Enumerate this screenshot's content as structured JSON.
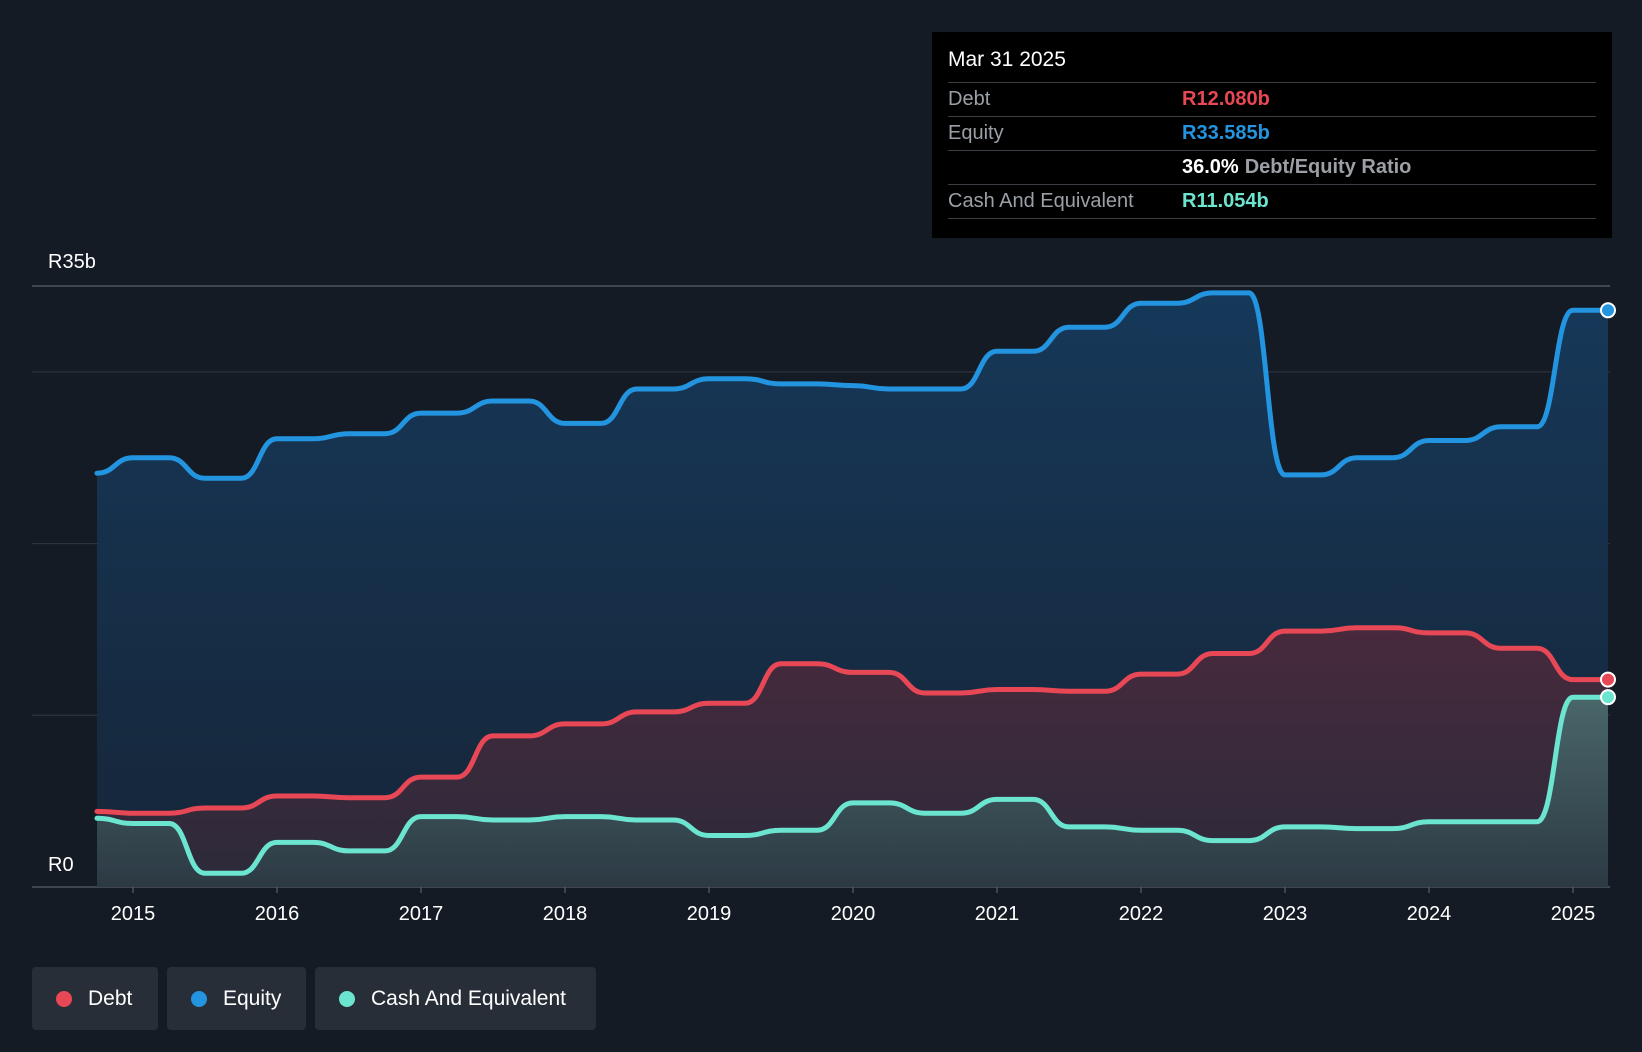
{
  "chart_data": {
    "type": "area",
    "title": "",
    "ylabel_top": "R35b",
    "ylabel_bottom": "R0",
    "ylim": [
      0,
      35
    ],
    "unit": "R billion",
    "x_ticks": [
      "2015",
      "2016",
      "2017",
      "2018",
      "2019",
      "2020",
      "2021",
      "2022",
      "2023",
      "2024",
      "2025"
    ],
    "x": [
      2014.75,
      2015.0,
      2015.25,
      2015.5,
      2015.75,
      2016.0,
      2016.25,
      2016.5,
      2016.75,
      2017.0,
      2017.25,
      2017.5,
      2017.75,
      2018.0,
      2018.25,
      2018.5,
      2018.75,
      2019.0,
      2019.25,
      2019.5,
      2019.75,
      2020.0,
      2020.25,
      2020.5,
      2020.75,
      2021.0,
      2021.25,
      2021.5,
      2021.75,
      2022.0,
      2022.25,
      2022.5,
      2022.75,
      2023.0,
      2023.25,
      2023.5,
      2023.75,
      2024.0,
      2024.25,
      2024.5,
      2024.75,
      2025.0,
      2025.25
    ],
    "series": [
      {
        "name": "Equity",
        "color": "#2394df",
        "values": [
          24.1,
          25.0,
          25.0,
          23.8,
          23.8,
          26.1,
          26.1,
          26.4,
          26.4,
          27.6,
          27.6,
          28.3,
          28.3,
          27.0,
          27.0,
          29.0,
          29.0,
          29.6,
          29.6,
          29.3,
          29.3,
          29.2,
          29.0,
          29.0,
          29.0,
          31.2,
          31.2,
          32.6,
          32.6,
          34.0,
          34.0,
          34.6,
          34.6,
          24.0,
          24.0,
          25.0,
          25.0,
          26.0,
          26.0,
          26.8,
          26.8,
          33.585,
          33.585
        ]
      },
      {
        "name": "Debt",
        "color": "#e84855",
        "values": [
          4.4,
          4.3,
          4.3,
          4.6,
          4.6,
          5.3,
          5.3,
          5.2,
          5.2,
          6.4,
          6.4,
          8.8,
          8.8,
          9.5,
          9.5,
          10.2,
          10.2,
          10.7,
          10.7,
          13.0,
          13.0,
          12.5,
          12.5,
          11.3,
          11.3,
          11.5,
          11.5,
          11.4,
          11.4,
          12.4,
          12.4,
          13.6,
          13.6,
          14.9,
          14.9,
          15.1,
          15.1,
          14.8,
          14.8,
          13.9,
          13.9,
          12.08,
          12.08
        ]
      },
      {
        "name": "Cash And Equivalent",
        "color": "#6ce5d0",
        "values": [
          4.0,
          3.7,
          3.7,
          0.8,
          0.8,
          2.6,
          2.6,
          2.1,
          2.1,
          4.1,
          4.1,
          3.9,
          3.9,
          4.1,
          4.1,
          3.9,
          3.9,
          3.0,
          3.0,
          3.3,
          3.3,
          4.9,
          4.9,
          4.3,
          4.3,
          5.1,
          5.1,
          3.5,
          3.5,
          3.3,
          3.3,
          2.7,
          2.7,
          3.5,
          3.5,
          3.4,
          3.4,
          3.8,
          3.8,
          3.8,
          3.8,
          11.054,
          11.054
        ]
      }
    ],
    "legend": [
      "Debt",
      "Equity",
      "Cash And Equivalent"
    ],
    "legend_position": "bottom-left",
    "grid": true
  },
  "tooltip": {
    "date": "Mar 31 2025",
    "debt_label": "Debt",
    "debt_value": "R12.080b",
    "equity_label": "Equity",
    "equity_value": "R33.585b",
    "ratio_value": "36.0%",
    "ratio_label": "Debt/Equity Ratio",
    "cash_label": "Cash And Equivalent",
    "cash_value": "R11.054b"
  },
  "legend_items": [
    {
      "label": "Debt",
      "color": "#e84855"
    },
    {
      "label": "Equity",
      "color": "#2394df"
    },
    {
      "label": "Cash And Equivalent",
      "color": "#6ce5d0"
    }
  ]
}
